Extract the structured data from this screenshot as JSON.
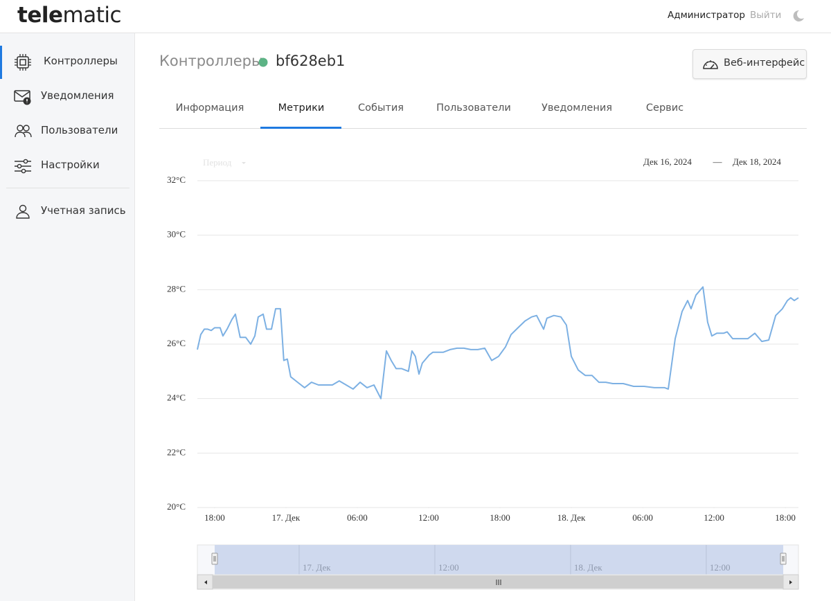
{
  "logo": [
    "tele",
    "matic"
  ],
  "sidebar": {
    "items": [
      "Контроллеры",
      "Уведомления",
      "Пользователи",
      "Настройки"
    ],
    "account": "Учетная запись"
  },
  "header": {
    "user": "Администратор",
    "logout": "Выйти"
  },
  "breadcrumb": {
    "section": "Контроллеры",
    "device": "bf628eb1"
  },
  "web_button": "Веб-интерфейс",
  "tabs": [
    "Информация",
    "Метрики",
    "События",
    "Пользователи",
    "Уведомления",
    "Сервис"
  ],
  "period": "Период",
  "date_range": {
    "from": "Дек 16, 2024",
    "separator": "—",
    "to": "Дек 18, 2024"
  },
  "chart_data": {
    "type": "line",
    "color": "#7cb0e3",
    "grid": true,
    "x": [
      "2024-12-16T16:33",
      "2024-12-16T16:50",
      "2024-12-16T17:08",
      "2024-12-16T17:25",
      "2024-12-16T17:43",
      "2024-12-16T18:00",
      "2024-12-16T18:28",
      "2024-12-16T18:42",
      "2024-12-16T19:03",
      "2024-12-16T19:27",
      "2024-12-16T19:45",
      "2024-12-16T20:09",
      "2024-12-16T20:37",
      "2024-12-16T21:02",
      "2024-12-16T21:23",
      "2024-12-16T21:40",
      "2024-12-16T22:05",
      "2024-12-16T22:22",
      "2024-12-16T22:47",
      "2024-12-16T23:08",
      "2024-12-16T23:32",
      "2024-12-16T23:49",
      "2024-12-17T00:07",
      "2024-12-17T00:24",
      "2024-12-17T00:59",
      "2024-12-17T01:34",
      "2024-12-17T02:09",
      "2024-12-17T02:44",
      "2024-12-17T03:19",
      "2024-12-17T03:54",
      "2024-12-17T04:29",
      "2024-12-17T05:04",
      "2024-12-17T05:39",
      "2024-12-17T06:14",
      "2024-12-17T06:49",
      "2024-12-17T07:24",
      "2024-12-17T07:59",
      "2024-12-17T08:27",
      "2024-12-17T08:51",
      "2024-12-17T09:16",
      "2024-12-17T09:44",
      "2024-12-17T10:18",
      "2024-12-17T10:36",
      "2024-12-17T10:53",
      "2024-12-17T11:11",
      "2024-12-17T11:28",
      "2024-12-17T12:03",
      "2024-12-17T12:21",
      "2024-12-17T13:13",
      "2024-12-17T13:48",
      "2024-12-17T14:23",
      "2024-12-17T14:58",
      "2024-12-17T15:33",
      "2024-12-17T16:08",
      "2024-12-17T16:43",
      "2024-12-17T17:18",
      "2024-12-17T17:53",
      "2024-12-17T18:28",
      "2024-12-17T18:56",
      "2024-12-17T19:31",
      "2024-12-17T20:06",
      "2024-12-17T20:40",
      "2024-12-17T21:05",
      "2024-12-17T21:40",
      "2024-12-17T21:57",
      "2024-12-17T22:32",
      "2024-12-17T23:07",
      "2024-12-17T23:35",
      "2024-12-18T00:00",
      "2024-12-18T00:35",
      "2024-12-18T01:10",
      "2024-12-18T01:44",
      "2024-12-18T02:19",
      "2024-12-18T02:54",
      "2024-12-18T03:29",
      "2024-12-18T04:22",
      "2024-12-18T05:14",
      "2024-12-18T06:07",
      "2024-12-18T06:59",
      "2024-12-18T07:51",
      "2024-12-18T08:09",
      "2024-12-18T08:44",
      "2024-12-18T09:19",
      "2024-12-18T09:47",
      "2024-12-18T10:04",
      "2024-12-18T10:29",
      "2024-12-18T11:04",
      "2024-12-18T11:28",
      "2024-12-18T11:49",
      "2024-12-18T12:14",
      "2024-12-18T12:48",
      "2024-12-18T13:06",
      "2024-12-18T13:34",
      "2024-12-18T14:09",
      "2024-12-18T14:51",
      "2024-12-18T15:26",
      "2024-12-18T16:01",
      "2024-12-18T16:36",
      "2024-12-18T17:11",
      "2024-12-18T17:45",
      "2024-12-18T18:10",
      "2024-12-18T18:27",
      "2024-12-18T18:45",
      "2024-12-18T19:06"
    ],
    "values": [
      25.8,
      26.35,
      26.55,
      26.55,
      26.5,
      26.6,
      26.6,
      26.3,
      26.55,
      26.9,
      27.1,
      26.25,
      26.25,
      26.0,
      26.3,
      27.0,
      27.1,
      26.55,
      26.55,
      27.3,
      27.3,
      25.4,
      25.45,
      24.8,
      24.6,
      24.4,
      24.6,
      24.5,
      24.5,
      24.5,
      24.65,
      24.5,
      24.35,
      24.6,
      24.4,
      24.5,
      24.0,
      25.75,
      25.4,
      25.1,
      25.1,
      25.0,
      25.75,
      25.55,
      24.9,
      25.3,
      25.6,
      25.7,
      25.7,
      25.8,
      25.85,
      25.85,
      25.8,
      25.8,
      25.85,
      25.4,
      25.55,
      25.9,
      26.35,
      26.6,
      26.85,
      27.0,
      27.05,
      26.55,
      26.95,
      27.05,
      27.0,
      26.7,
      25.55,
      25.05,
      24.85,
      24.85,
      24.6,
      24.6,
      24.55,
      24.55,
      24.45,
      24.45,
      24.4,
      24.4,
      24.35,
      26.2,
      27.2,
      27.6,
      27.3,
      27.8,
      28.1,
      26.8,
      26.3,
      26.4,
      26.4,
      26.45,
      26.2,
      26.2,
      26.2,
      26.4,
      26.1,
      26.15,
      27.05,
      27.3,
      27.6,
      27.7,
      27.6,
      27.7
    ],
    "xlim": [
      "2024-12-16T16:33",
      "2024-12-18T19:06"
    ],
    "xticks": [
      {
        "value": "2024-12-16T18:00",
        "label": "18:00"
      },
      {
        "value": "2024-12-17T00:00",
        "label": "17. Дек"
      },
      {
        "value": "2024-12-17T06:00",
        "label": "06:00"
      },
      {
        "value": "2024-12-17T12:00",
        "label": "12:00"
      },
      {
        "value": "2024-12-17T18:00",
        "label": "18:00"
      },
      {
        "value": "2024-12-18T00:00",
        "label": "18. Дек"
      },
      {
        "value": "2024-12-18T06:00",
        "label": "06:00"
      },
      {
        "value": "2024-12-18T12:00",
        "label": "12:00"
      },
      {
        "value": "2024-12-18T18:00",
        "label": "18:00"
      }
    ],
    "ylim": [
      20,
      32
    ],
    "yticks": [
      {
        "value": 20,
        "label": "20°C"
      },
      {
        "value": 22,
        "label": "22°C"
      },
      {
        "value": 24,
        "label": "24°C"
      },
      {
        "value": 26,
        "label": "26°C"
      },
      {
        "value": 28,
        "label": "28°C"
      },
      {
        "value": 30,
        "label": "30°C"
      },
      {
        "value": 32,
        "label": "32°C"
      }
    ],
    "navigator": {
      "xlim": [
        "2024-12-16T15:00",
        "2024-12-18T20:09"
      ],
      "ticks": [
        {
          "value": "2024-12-17T00:00",
          "label": "17. Дек"
        },
        {
          "value": "2024-12-17T12:00",
          "label": "12:00"
        },
        {
          "value": "2024-12-18T00:00",
          "label": "18. Дек"
        },
        {
          "value": "2024-12-18T12:00",
          "label": "12:00"
        }
      ]
    }
  }
}
